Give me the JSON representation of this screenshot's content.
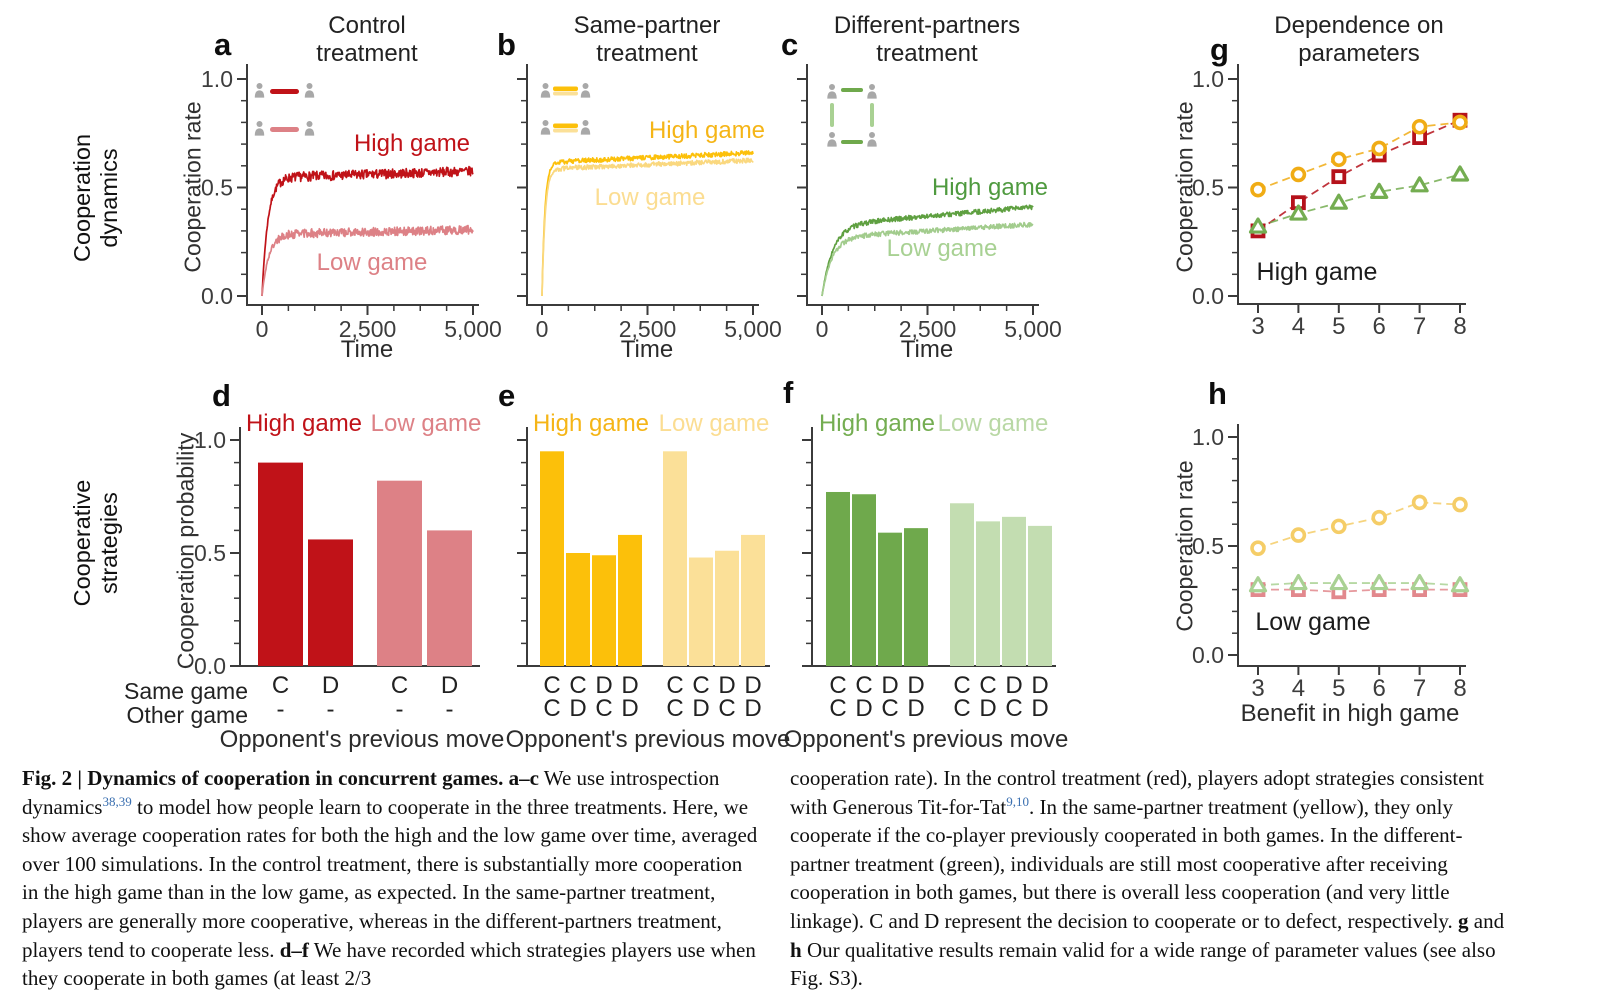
{
  "rows": [
    {
      "label": "Cooperation\ndynamics"
    },
    {
      "label": "Cooperative\nstrategies"
    }
  ],
  "colors": {
    "red_high": "#c01218",
    "red_low": "#dd8186",
    "yellow_high": "#fcc00a",
    "yellow_low": "#fbe098",
    "green_high": "#5fa041",
    "green_low": "#a2cc8d",
    "green_bar_high": "#6fa94c",
    "green_bar_low": "#c3ddb1",
    "person_gray": "#a8a8a8",
    "axis": "#3b3b3b",
    "reference_blue": "#3a6fb0"
  },
  "chart_data": [
    {
      "id": "a",
      "letter": "a",
      "type": "line",
      "title": "Control treatment",
      "title_display": "Control\ntreatment",
      "xlabel": "Time",
      "ylabel": "Cooperation rate",
      "xlim": [
        0,
        5000
      ],
      "ylim": [
        0,
        1
      ],
      "xticks": [
        0,
        2500,
        5000
      ],
      "xtick_labels": [
        "0",
        "2,500",
        "5,000"
      ],
      "yticks": [
        0,
        0.5,
        1
      ],
      "ytick_labels": [
        "0.0",
        "0.5",
        "1.0"
      ],
      "show_ytick_labels": true,
      "series": [
        {
          "name": "High game",
          "color": "#c01218",
          "start": 0,
          "plateau": 0.545,
          "drift": 0.03,
          "rise_time": 140,
          "noise": 0.022,
          "final_value": 0.57
        },
        {
          "name": "Low game",
          "color": "#dd8186",
          "start": 0,
          "plateau": 0.285,
          "drift": 0.02,
          "rise_time": 160,
          "noise": 0.02,
          "final_value": 0.3
        }
      ]
    },
    {
      "id": "b",
      "letter": "b",
      "type": "line",
      "title": "Same-partner treatment",
      "title_display": "Same-partner\ntreatment",
      "xlabel": "Time",
      "ylabel": "",
      "xlim": [
        0,
        5000
      ],
      "ylim": [
        0,
        1
      ],
      "xticks": [
        0,
        2500,
        5000
      ],
      "xtick_labels": [
        "0",
        "2,500",
        "5,000"
      ],
      "yticks": [
        0,
        0.5,
        1
      ],
      "ytick_labels": [
        "0.0",
        "0.5",
        "1.0"
      ],
      "show_ytick_labels": false,
      "series": [
        {
          "name": "High game",
          "color": "#fcc00a",
          "start": 0,
          "plateau": 0.615,
          "drift": 0.045,
          "rise_time": 70,
          "noise": 0.011,
          "final_value": 0.66
        },
        {
          "name": "Low game",
          "color": "#fad87f",
          "start": 0,
          "plateau": 0.585,
          "drift": 0.04,
          "rise_time": 75,
          "noise": 0.011,
          "final_value": 0.62
        }
      ]
    },
    {
      "id": "c",
      "letter": "c",
      "type": "line",
      "title": "Different-partners treatment",
      "title_display": "Different-partners\ntreatment",
      "xlabel": "Time",
      "ylabel": "",
      "xlim": [
        0,
        5000
      ],
      "ylim": [
        0,
        1
      ],
      "xticks": [
        0,
        2500,
        5000
      ],
      "xtick_labels": [
        "0",
        "2,500",
        "5,000"
      ],
      "yticks": [
        0,
        0.5,
        1
      ],
      "ytick_labels": [
        "0.0",
        "0.5",
        "1.0"
      ],
      "show_ytick_labels": false,
      "series": [
        {
          "name": "High game",
          "color": "#5fa041",
          "start": 0,
          "plateau": 0.325,
          "drift": 0.085,
          "rise_time": 260,
          "noise": 0.011,
          "final_value": 0.41
        },
        {
          "name": "Low game",
          "color": "#a2cc8d",
          "start": 0,
          "plateau": 0.27,
          "drift": 0.06,
          "rise_time": 240,
          "noise": 0.011,
          "final_value": 0.33
        }
      ]
    },
    {
      "id": "d",
      "letter": "d",
      "type": "bar",
      "ylabel": "Cooperation probability",
      "ylim": [
        0,
        1
      ],
      "yticks": [
        0,
        0.5,
        1
      ],
      "ytick_labels": [
        "0.0",
        "0.5",
        "1.0"
      ],
      "show_ytick_labels": true,
      "xlabel": "Opponent's previous move",
      "row_labels": [
        "Same game",
        "Other game"
      ],
      "groups": [
        {
          "name": "High game",
          "color": "#c01218",
          "bars": [
            {
              "same": "C",
              "other": "-",
              "value": 0.9
            },
            {
              "same": "D",
              "other": "-",
              "value": 0.56
            }
          ]
        },
        {
          "name": "Low game",
          "color": "#dd8186",
          "bars": [
            {
              "same": "C",
              "other": "-",
              "value": 0.82
            },
            {
              "same": "D",
              "other": "-",
              "value": 0.6
            }
          ]
        }
      ]
    },
    {
      "id": "e",
      "letter": "e",
      "type": "bar",
      "ylabel": "",
      "ylim": [
        0,
        1
      ],
      "yticks": [
        0,
        0.5,
        1
      ],
      "ytick_labels": [
        "0.0",
        "0.5",
        "1.0"
      ],
      "show_ytick_labels": false,
      "xlabel": "Opponent's previous move",
      "groups": [
        {
          "name": "High game",
          "color": "#fcc00a",
          "bars": [
            {
              "same": "C",
              "other": "C",
              "value": 0.95
            },
            {
              "same": "C",
              "other": "D",
              "value": 0.5
            },
            {
              "same": "D",
              "other": "C",
              "value": 0.49
            },
            {
              "same": "D",
              "other": "D",
              "value": 0.58
            }
          ]
        },
        {
          "name": "Low game",
          "color": "#fbe098",
          "bars": [
            {
              "same": "C",
              "other": "C",
              "value": 0.95
            },
            {
              "same": "C",
              "other": "D",
              "value": 0.48
            },
            {
              "same": "D",
              "other": "C",
              "value": 0.51
            },
            {
              "same": "D",
              "other": "D",
              "value": 0.58
            }
          ]
        }
      ]
    },
    {
      "id": "f",
      "letter": "f",
      "type": "bar",
      "ylabel": "",
      "ylim": [
        0,
        1
      ],
      "yticks": [
        0,
        0.5,
        1
      ],
      "ytick_labels": [
        "0.0",
        "0.5",
        "1.0"
      ],
      "show_ytick_labels": false,
      "xlabel": "Opponent's previous move",
      "groups": [
        {
          "name": "High game",
          "color": "#6fa94c",
          "bars": [
            {
              "same": "C",
              "other": "C",
              "value": 0.77
            },
            {
              "same": "C",
              "other": "D",
              "value": 0.76
            },
            {
              "same": "D",
              "other": "C",
              "value": 0.59
            },
            {
              "same": "D",
              "other": "D",
              "value": 0.61
            }
          ]
        },
        {
          "name": "Low game",
          "color": "#c3ddb1",
          "bars": [
            {
              "same": "C",
              "other": "C",
              "value": 0.72
            },
            {
              "same": "C",
              "other": "D",
              "value": 0.64
            },
            {
              "same": "D",
              "other": "C",
              "value": 0.66
            },
            {
              "same": "D",
              "other": "D",
              "value": 0.62
            }
          ]
        }
      ]
    },
    {
      "id": "g",
      "letter": "g",
      "type": "scatter",
      "title": "Dependence on parameters",
      "title_display": "Dependence on\nparameters",
      "annotation": "High game",
      "xlabel": "",
      "ylabel": "Cooperation rate",
      "ylim": [
        0,
        1
      ],
      "x": [
        3,
        4,
        5,
        6,
        7,
        8
      ],
      "xtick_labels": [
        "3",
        "4",
        "5",
        "6",
        "7",
        "8"
      ],
      "yticks": [
        0,
        0.5,
        1
      ],
      "ytick_labels": [
        "0.0",
        "0.5",
        "1.0"
      ],
      "show_ytick_labels": true,
      "series": [
        {
          "name": "Same-partner treatment",
          "marker": "circle",
          "color": "#f0ac15",
          "values": [
            0.49,
            0.56,
            0.63,
            0.68,
            0.78,
            0.8
          ]
        },
        {
          "name": "Control treatment",
          "marker": "square",
          "color": "#b5121b",
          "values": [
            0.3,
            0.43,
            0.55,
            0.65,
            0.73,
            0.81
          ]
        },
        {
          "name": "Different-partners treatment",
          "marker": "triangle",
          "color": "#74ad51",
          "values": [
            0.32,
            0.38,
            0.43,
            0.48,
            0.51,
            0.56
          ]
        }
      ]
    },
    {
      "id": "h",
      "letter": "h",
      "type": "scatter",
      "annotation": "Low game",
      "xlabel": "Benefit in high game",
      "ylabel": "Cooperation rate",
      "ylim": [
        0,
        1
      ],
      "x": [
        3,
        4,
        5,
        6,
        7,
        8
      ],
      "xtick_labels": [
        "3",
        "4",
        "5",
        "6",
        "7",
        "8"
      ],
      "yticks": [
        0,
        0.5,
        1
      ],
      "ytick_labels": [
        "0.0",
        "0.5",
        "1.0"
      ],
      "show_ytick_labels": true,
      "series": [
        {
          "name": "Same-partner treatment",
          "marker": "circle",
          "color": "#f5cd67",
          "values": [
            0.49,
            0.55,
            0.59,
            0.63,
            0.7,
            0.69
          ]
        },
        {
          "name": "Control treatment",
          "marker": "square",
          "color": "#e2888d",
          "values": [
            0.3,
            0.3,
            0.29,
            0.3,
            0.3,
            0.3
          ]
        },
        {
          "name": "Different-partners treatment",
          "marker": "triangle",
          "color": "#a9d193",
          "values": [
            0.32,
            0.33,
            0.33,
            0.33,
            0.33,
            0.32
          ]
        }
      ]
    }
  ],
  "caption": {
    "left": [
      {
        "t": "Fig. 2 | Dynamics of cooperation in concurrent games. ",
        "bold": true
      },
      {
        "t": "a–c",
        "bold": true
      },
      {
        "t": " We use introspection dynamics"
      },
      {
        "t": "38,39",
        "sup": true,
        "color": "#3a6fb0"
      },
      {
        "t": " to model how people learn to cooperate in the three treatments. Here, we show average cooperation rates for both the high and the low game over time, averaged over 100 simulations. In the control treatment, there is substantially more cooperation in the high game than in the low game, as expected. In the same-partner treatment, players are generally more cooperative, whereas in the different-partners treatment, players tend to cooperate less. "
      },
      {
        "t": "d–f",
        "bold": true
      },
      {
        "t": " We have recorded which strategies players use when they cooperate in both games (at least 2/3"
      }
    ],
    "right": [
      {
        "t": "cooperation rate). In the control treatment (red), players adopt strategies consistent with Generous Tit-for-Tat"
      },
      {
        "t": "9,10",
        "sup": true,
        "color": "#3a6fb0"
      },
      {
        "t": ". In the same-partner treatment (yellow), they only cooperate if the co-player previously cooperated in both games. In the different-partner treatment (green), individuals are still most cooperative after receiving cooperation in both games, but there is overall less cooperation (and very little linkage). C and D represent the decision to cooperate or to defect, respectively. "
      },
      {
        "t": "g",
        "bold": true
      },
      {
        "t": " and "
      },
      {
        "t": "h",
        "bold": true
      },
      {
        "t": " Our qualitative results remain valid for a wide range of parameter values (see also Fig. S3)."
      }
    ]
  }
}
